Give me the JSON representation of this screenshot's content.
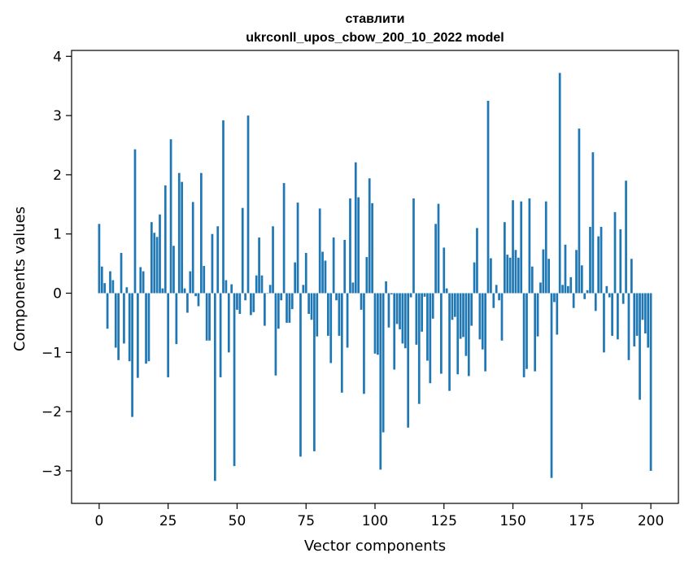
{
  "chart_data": {
    "type": "bar",
    "title_line1": "ставлити",
    "title_line2": "ukrconll_upos_cbow_200_10_2022 model",
    "xlabel": "Vector components",
    "ylabel": "Components values",
    "xlim": [
      -10,
      210
    ],
    "ylim": [
      -3.55,
      4.1
    ],
    "xticks": [
      0,
      25,
      50,
      75,
      100,
      125,
      150,
      175,
      200
    ],
    "xtick_labels": [
      "0",
      "25",
      "50",
      "75",
      "100",
      "125",
      "150",
      "175",
      "200"
    ],
    "yticks": [
      -3,
      -2,
      -1,
      0,
      1,
      2,
      3,
      4
    ],
    "ytick_labels": [
      "−3",
      "−2",
      "−1",
      "0",
      "1",
      "2",
      "3",
      "4"
    ],
    "bar_color": "#1f77b4",
    "grid": false,
    "legend": false,
    "values": [
      1.17,
      0.45,
      0.17,
      -0.6,
      0.37,
      0.22,
      -0.92,
      -1.13,
      0.68,
      -0.85,
      0.1,
      -1.15,
      -2.09,
      2.43,
      -1.43,
      0.44,
      0.37,
      -1.19,
      -1.15,
      1.2,
      1.02,
      0.95,
      1.33,
      0.08,
      1.82,
      -1.42,
      2.6,
      0.8,
      -0.86,
      2.03,
      1.88,
      0.08,
      -0.33,
      0.37,
      1.54,
      -0.05,
      -0.22,
      2.03,
      0.46,
      -0.8,
      -0.8,
      1.0,
      -3.17,
      1.13,
      -1.42,
      2.92,
      0.22,
      -1.0,
      0.15,
      -2.92,
      -0.28,
      -0.35,
      1.44,
      -0.12,
      3.0,
      -0.37,
      -0.32,
      0.3,
      0.94,
      0.3,
      -0.55,
      0.0,
      0.14,
      1.13,
      -1.39,
      -0.6,
      -0.12,
      1.86,
      -0.5,
      -0.5,
      -0.27,
      0.52,
      1.53,
      -2.76,
      0.14,
      0.68,
      -0.35,
      -0.45,
      -2.67,
      -0.73,
      1.43,
      0.7,
      0.55,
      -0.72,
      -1.18,
      0.94,
      -0.12,
      -0.72,
      -1.68,
      0.9,
      -0.92,
      1.6,
      0.18,
      2.21,
      1.62,
      -0.28,
      -1.7,
      0.61,
      1.94,
      1.52,
      -1.02,
      -1.04,
      -2.98,
      -2.35,
      0.2,
      -0.58,
      -0.02,
      -1.29,
      -0.52,
      -0.61,
      -0.85,
      -0.93,
      -2.27,
      -0.07,
      1.6,
      -0.87,
      -1.87,
      -0.65,
      -0.06,
      -1.14,
      -1.52,
      -0.43,
      1.17,
      1.51,
      -1.36,
      0.77,
      0.08,
      -1.65,
      -0.45,
      -0.4,
      -1.37,
      -0.77,
      -0.74,
      -1.06,
      -1.4,
      -0.55,
      0.52,
      1.1,
      -0.78,
      -0.95,
      -1.32,
      3.25,
      0.59,
      -0.25,
      0.14,
      -0.12,
      -0.8,
      1.2,
      0.65,
      0.6,
      1.57,
      0.73,
      0.6,
      1.55,
      -1.42,
      -1.28,
      1.6,
      0.45,
      -1.32,
      -0.73,
      0.18,
      0.74,
      1.55,
      0.58,
      -3.12,
      -0.15,
      -0.7,
      3.72,
      0.14,
      0.82,
      0.12,
      0.27,
      -0.25,
      0.73,
      2.78,
      0.47,
      -0.1,
      0.05,
      1.12,
      2.38,
      -0.3,
      0.96,
      1.12,
      -1.0,
      0.12,
      -0.07,
      -0.72,
      1.37,
      -0.78,
      1.08,
      -0.18,
      1.9,
      -1.13,
      0.58,
      -0.9,
      -0.72,
      -1.8,
      -0.45,
      -0.68,
      -0.92,
      -3.0
    ]
  }
}
